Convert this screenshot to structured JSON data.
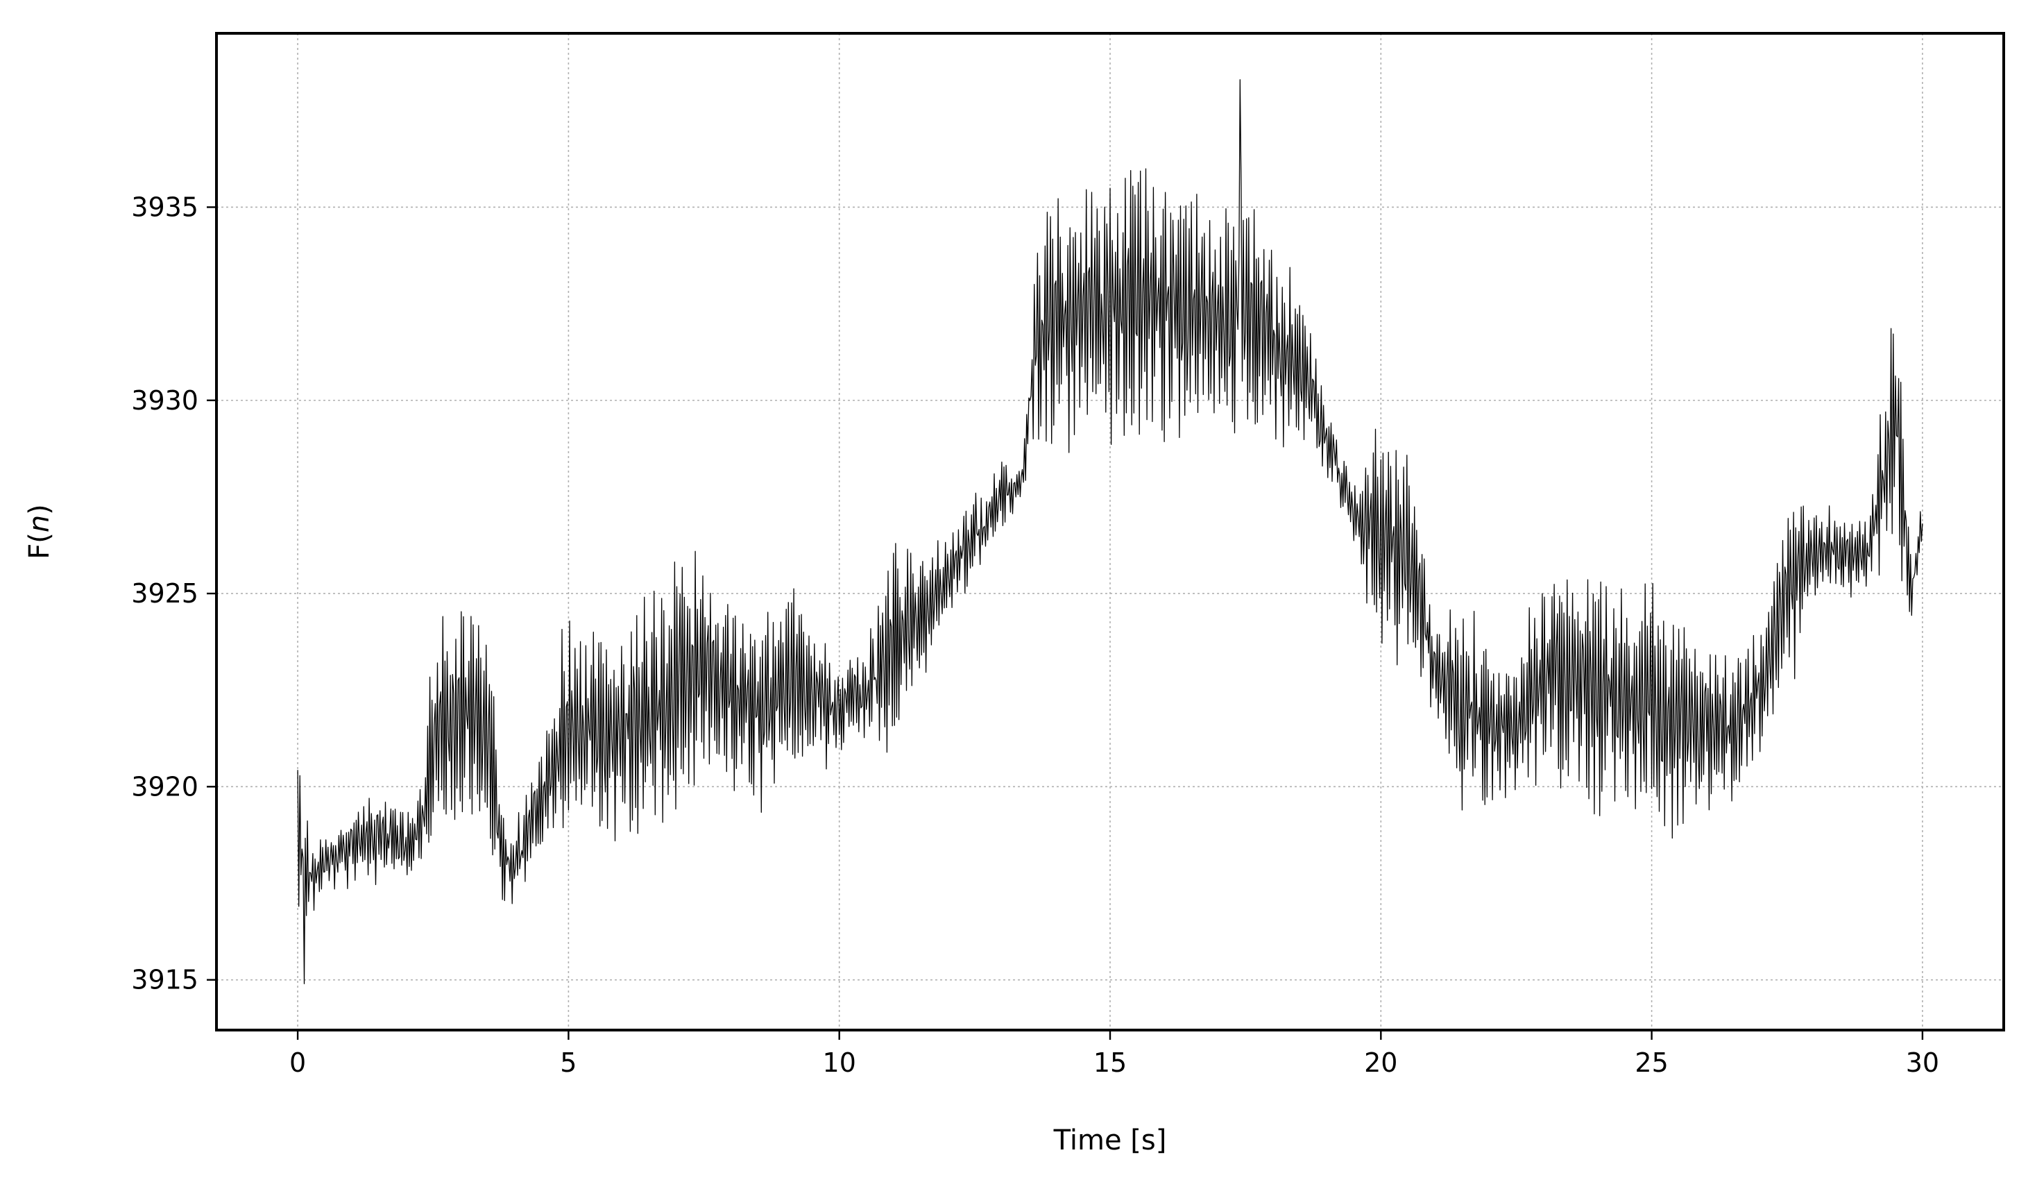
{
  "chart_data": {
    "type": "line",
    "title": "",
    "xlabel": "Time [s]",
    "ylabel_base": "F(",
    "ylabel_var": "n",
    "ylabel_close": ")",
    "xlim": [
      -1.5,
      31.5
    ],
    "ylim": [
      3913.7,
      3939.5
    ],
    "xticks": [
      0,
      5,
      10,
      15,
      20,
      25,
      30
    ],
    "yticks": [
      3915,
      3920,
      3925,
      3930,
      3935
    ],
    "xtick_labels": [
      "0",
      "5",
      "10",
      "15",
      "20",
      "25",
      "30"
    ],
    "ytick_labels": [
      "3915",
      "3920",
      "3925",
      "3930",
      "3935"
    ],
    "grid": true,
    "legend": "none",
    "series_color": "#000000",
    "grid_color": "#b0b0b0",
    "series": [
      {
        "sample_interval_s": 0.02,
        "x_start_s": 0,
        "envelope_note_x": [
          0,
          0.1,
          0.2,
          0.5,
          1.0,
          1.5,
          2.0,
          2.3,
          2.5,
          3.0,
          3.5,
          3.8,
          4.0,
          4.3,
          5.0,
          6.0,
          7.0,
          7.5,
          8.0,
          8.5,
          9.0,
          9.5,
          10.0,
          10.5,
          11.0,
          11.5,
          12.0,
          12.5,
          13.0,
          13.4,
          13.6,
          14.0,
          15.0,
          16.0,
          16.5,
          17.0,
          17.5,
          18.0,
          18.5,
          19.0,
          19.5,
          20.0,
          20.5,
          21.0,
          21.5,
          22.0,
          22.5,
          23.0,
          24.0,
          25.0,
          26.0,
          26.5,
          27.0,
          27.5,
          28.0,
          28.5,
          29.0,
          29.5,
          29.8,
          30.0
        ],
        "x": [
          0,
          0.1,
          0.2,
          0.5,
          1.0,
          1.5,
          2.0,
          2.3,
          2.5,
          3.0,
          3.5,
          3.8,
          4.0,
          4.3,
          5.0,
          6.0,
          7.0,
          7.5,
          8.0,
          8.5,
          9.0,
          9.5,
          10.0,
          10.5,
          11.0,
          11.5,
          12.0,
          12.5,
          13.0,
          13.4,
          13.6,
          14.0,
          15.0,
          16.0,
          16.5,
          17.0,
          17.5,
          18.0,
          18.5,
          19.0,
          19.5,
          20.0,
          20.5,
          21.0,
          21.5,
          22.0,
          22.5,
          23.0,
          24.0,
          25.0,
          26.0,
          26.5,
          27.0,
          27.5,
          28.0,
          28.5,
          29.0,
          29.5,
          29.8,
          30.0
        ],
        "y_mid": [
          3919,
          3918,
          3917.5,
          3918,
          3918.5,
          3918.8,
          3918.4,
          3919,
          3921.5,
          3922,
          3921.5,
          3918,
          3918,
          3919,
          3921.5,
          3921.5,
          3922.5,
          3923,
          3922.5,
          3922,
          3922.5,
          3922.5,
          3922,
          3922.5,
          3923.5,
          3924.5,
          3925.5,
          3926.5,
          3927.5,
          3928,
          3931.5,
          3932,
          3932.5,
          3932.5,
          3932.5,
          3932,
          3932.5,
          3931.5,
          3931,
          3929,
          3927,
          3926.5,
          3926,
          3923,
          3922,
          3921.5,
          3921.5,
          3923,
          3922.5,
          3922,
          3921.5,
          3921.5,
          3922.5,
          3925,
          3926,
          3926,
          3926,
          3929.5,
          3925,
          3927
        ],
        "y_amp": [
          2,
          3,
          1,
          0.8,
          1,
          1.2,
          1,
          1,
          2.8,
          3,
          3.5,
          1,
          0.8,
          1,
          3.2,
          3.2,
          3.5,
          3,
          2.5,
          2.5,
          2.8,
          2.2,
          1.2,
          1.2,
          3,
          2,
          1.2,
          1,
          0.8,
          0.6,
          2.8,
          3.8,
          3.8,
          4,
          3.5,
          3.2,
          3.5,
          3,
          2,
          1,
          0.8,
          3.5,
          3,
          1.2,
          3,
          2.5,
          1.5,
          3,
          3.5,
          3.2,
          2.5,
          2,
          2,
          2.8,
          1.2,
          1,
          1,
          3.8,
          1,
          0.5
        ],
        "y_min": 3914.9,
        "y_max": 3938.3
      }
    ]
  }
}
